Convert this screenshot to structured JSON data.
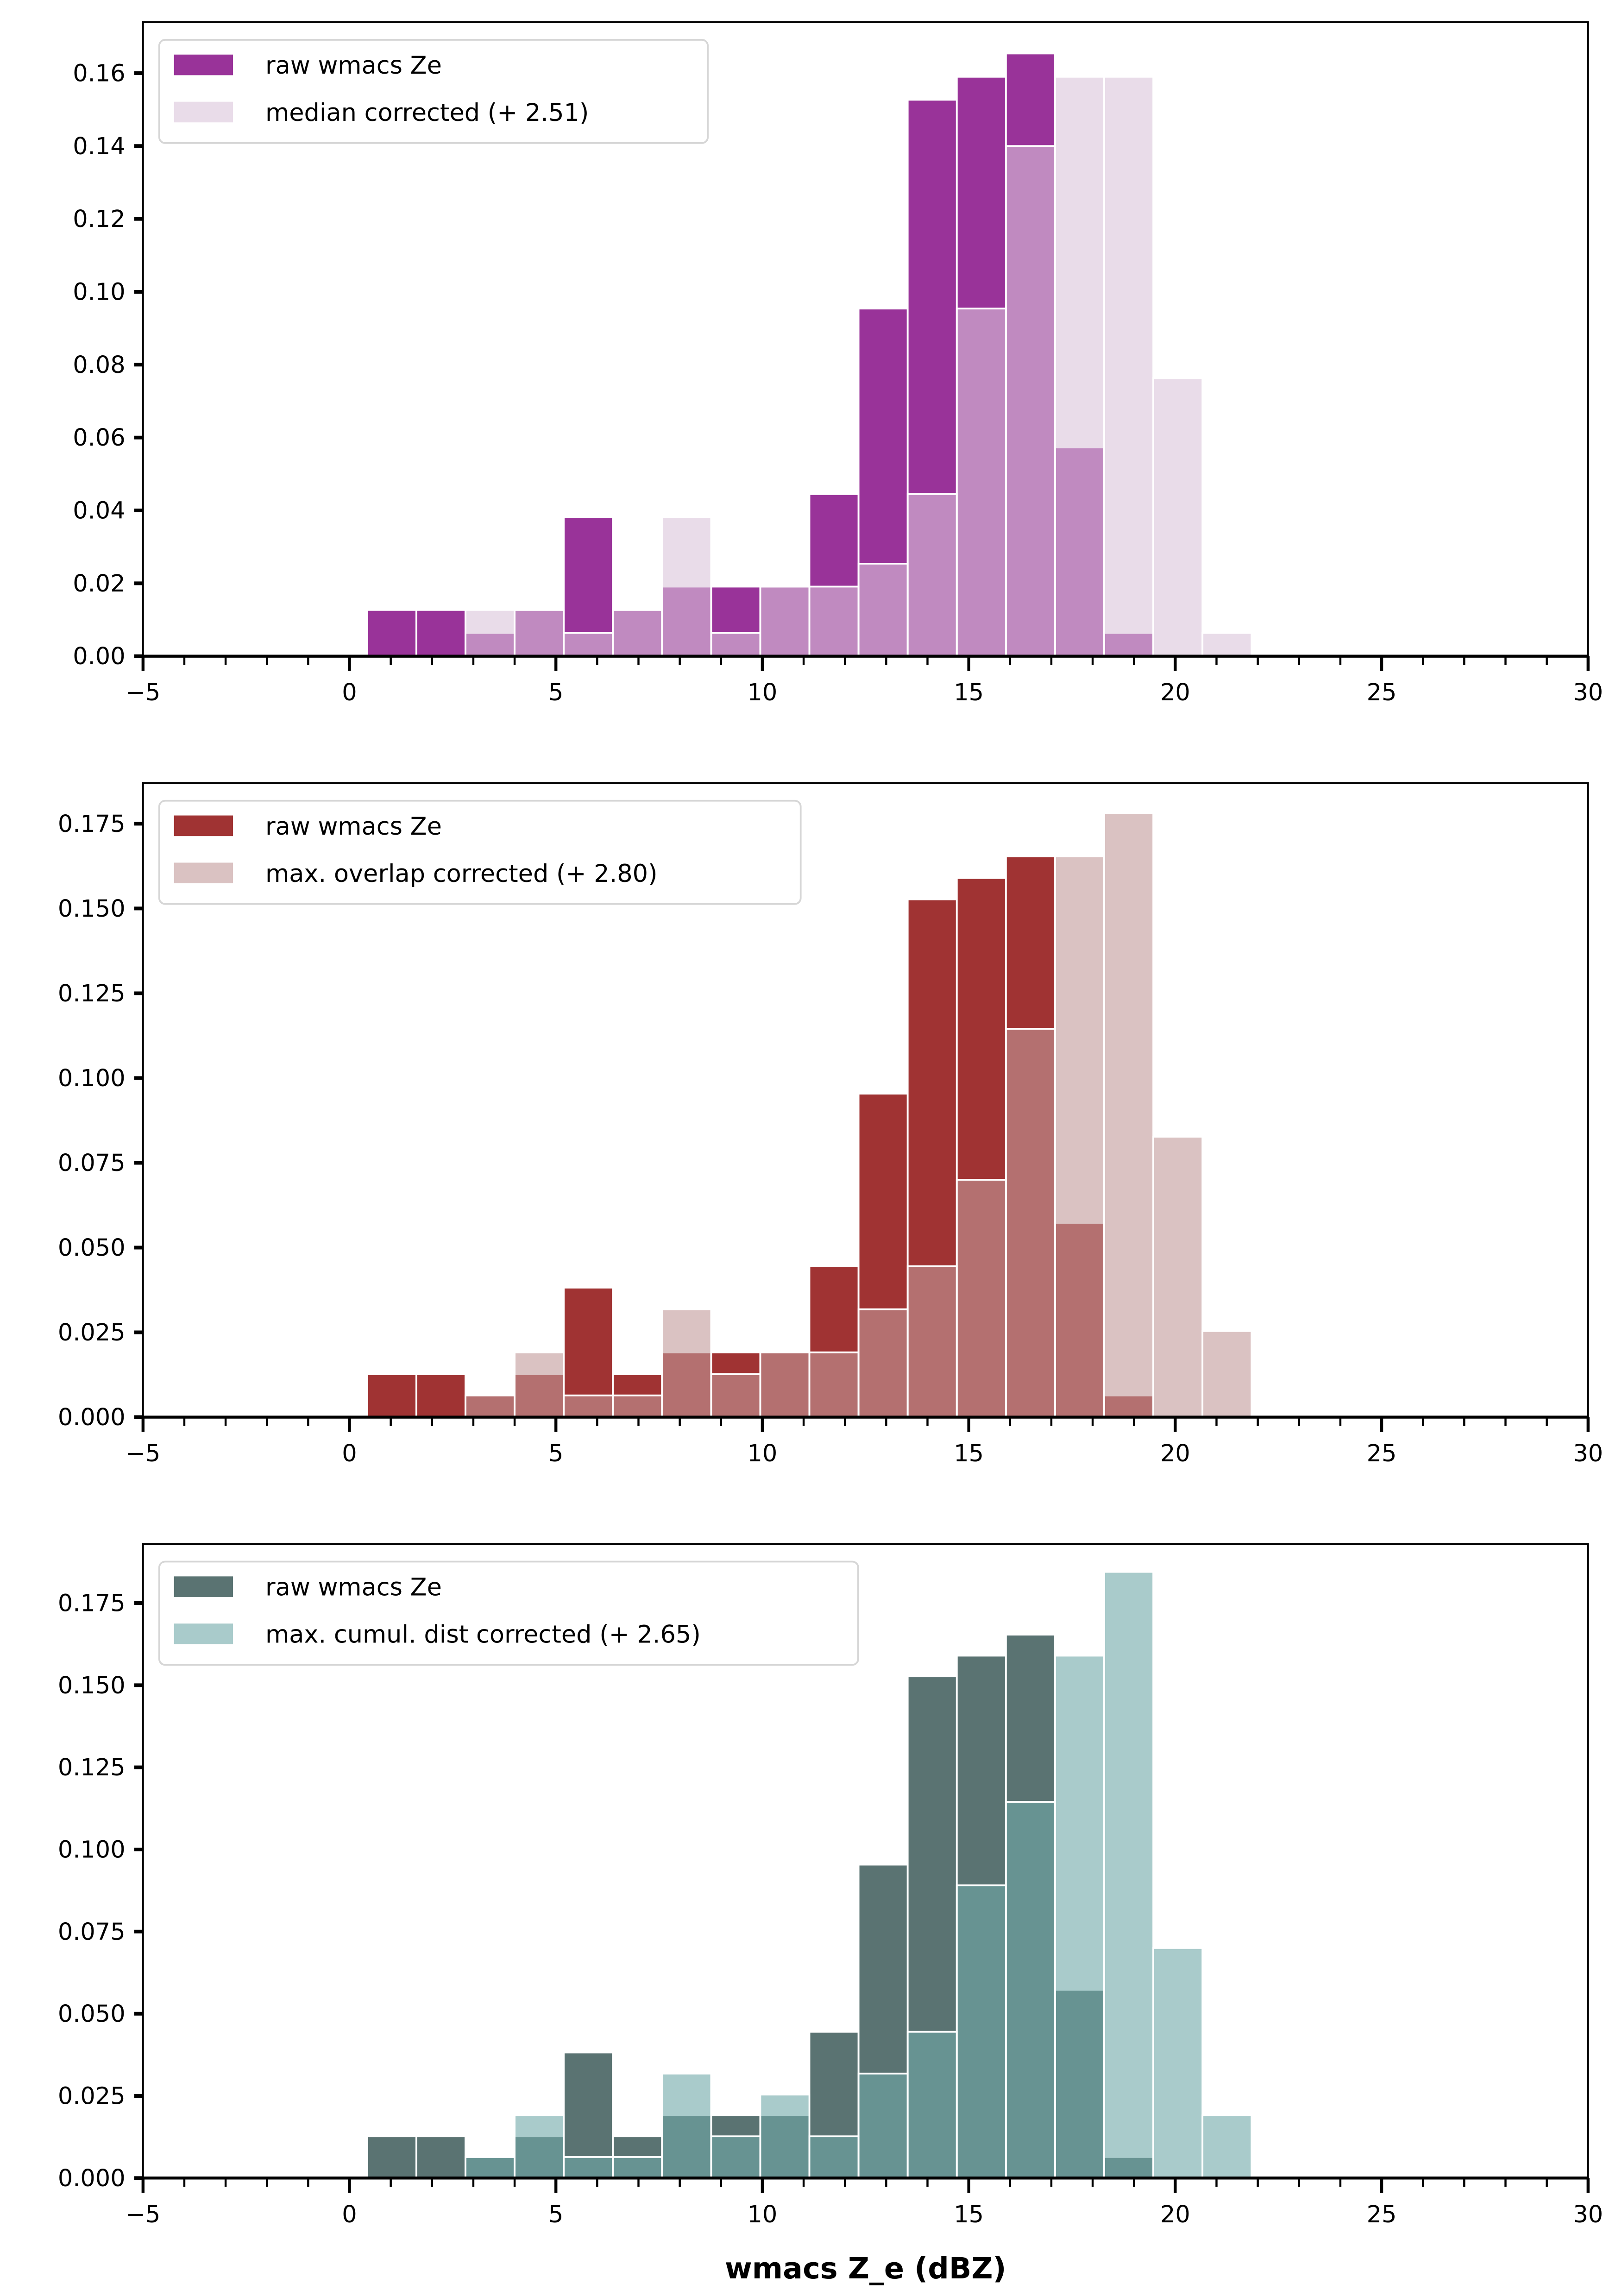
{
  "chart_data": [
    {
      "type": "bar",
      "subtype": "overlaid-histogram",
      "title": "",
      "xlabel": "",
      "ylabel": "",
      "xlim": [
        -5,
        30
      ],
      "ylim": [
        0,
        0.174
      ],
      "xticks": [
        -5,
        0,
        5,
        10,
        15,
        20,
        25,
        30
      ],
      "xtick_labels": [
        "−5",
        "0",
        "5",
        "10",
        "15",
        "20",
        "25",
        "30"
      ],
      "yticks": [
        0.0,
        0.02,
        0.04,
        0.06,
        0.08,
        0.1,
        0.12,
        0.14,
        0.16
      ],
      "ytick_labels": [
        "0.00",
        "0.02",
        "0.04",
        "0.06",
        "0.08",
        "0.10",
        "0.12",
        "0.14",
        "0.16"
      ],
      "legend_position": "top-left",
      "bin_edges": [
        0.43,
        1.62,
        2.81,
        4.0,
        5.19,
        6.38,
        7.57,
        8.76,
        9.95,
        11.14,
        12.33,
        13.52,
        14.71,
        15.9,
        17.09,
        18.28,
        19.47,
        20.66,
        21.85
      ],
      "series": [
        {
          "name": "raw wmacs Ze",
          "color": "#993399",
          "alpha": 1.0,
          "values": [
            0.0127,
            0.0127,
            0.0064,
            0.0127,
            0.0382,
            0.0127,
            0.0191,
            0.0191,
            0.0191,
            0.0445,
            0.0954,
            0.1527,
            0.159,
            0.1654,
            0.0573,
            0.0064,
            0,
            0
          ]
        },
        {
          "name": "median corrected (+ 2.51)",
          "color": "#dac4da",
          "overlap_color": "#d2aed0",
          "alpha": 0.6,
          "values": [
            0,
            0,
            0.0127,
            0.0127,
            0.0064,
            0.0127,
            0.0382,
            0.0064,
            0.0191,
            0.0191,
            0.0254,
            0.0445,
            0.0954,
            0.14,
            0.159,
            0.159,
            0.0763,
            0.0064
          ]
        }
      ]
    },
    {
      "type": "bar",
      "subtype": "overlaid-histogram",
      "title": "",
      "xlabel": "",
      "ylabel": "",
      "xlim": [
        -5,
        30
      ],
      "ylim": [
        0,
        0.187
      ],
      "xticks": [
        -5,
        0,
        5,
        10,
        15,
        20,
        25,
        30
      ],
      "xtick_labels": [
        "−5",
        "0",
        "5",
        "10",
        "15",
        "20",
        "25",
        "30"
      ],
      "yticks": [
        0.0,
        0.025,
        0.05,
        0.075,
        0.1,
        0.125,
        0.15,
        0.175
      ],
      "ytick_labels": [
        "0.000",
        "0.025",
        "0.050",
        "0.075",
        "0.100",
        "0.125",
        "0.150",
        "0.175"
      ],
      "legend_position": "top-left",
      "bin_edges": [
        0.43,
        1.62,
        2.81,
        4.0,
        5.19,
        6.38,
        7.57,
        8.76,
        9.95,
        11.14,
        12.33,
        13.52,
        14.71,
        15.9,
        17.09,
        18.28,
        19.47,
        20.66,
        21.85
      ],
      "series": [
        {
          "name": "raw wmacs Ze",
          "color": "#a03333",
          "alpha": 1.0,
          "values": [
            0.0127,
            0.0127,
            0.0064,
            0.0127,
            0.0382,
            0.0127,
            0.0191,
            0.0191,
            0.0191,
            0.0445,
            0.0954,
            0.1527,
            0.159,
            0.1654,
            0.0573,
            0.0064,
            0,
            0
          ]
        },
        {
          "name": "max. overlap corrected (+ 2.80)",
          "color": "#c29a9a",
          "overlap_color": "#b88686",
          "alpha": 0.6,
          "values": [
            0,
            0,
            0.0064,
            0.0191,
            0.0064,
            0.0064,
            0.0318,
            0.0127,
            0.0191,
            0.0191,
            0.0318,
            0.0445,
            0.07,
            0.1145,
            0.1654,
            0.1781,
            0.0827,
            0.0254
          ]
        }
      ]
    },
    {
      "type": "bar",
      "subtype": "overlaid-histogram",
      "title": "",
      "xlabel": "wmacs Z_e (dBZ)",
      "ylabel": "",
      "xlim": [
        -5,
        30
      ],
      "ylim": [
        0,
        0.193
      ],
      "xticks": [
        -5,
        0,
        5,
        10,
        15,
        20,
        25,
        30
      ],
      "xtick_labels": [
        "−5",
        "0",
        "5",
        "10",
        "15",
        "20",
        "25",
        "30"
      ],
      "yticks": [
        0.0,
        0.025,
        0.05,
        0.075,
        0.1,
        0.125,
        0.15,
        0.175
      ],
      "ytick_labels": [
        "0.000",
        "0.025",
        "0.050",
        "0.075",
        "0.100",
        "0.125",
        "0.150",
        "0.175"
      ],
      "legend_position": "top-left",
      "bin_edges": [
        0.43,
        1.62,
        2.81,
        4.0,
        5.19,
        6.38,
        7.57,
        8.76,
        9.95,
        11.14,
        12.33,
        13.52,
        14.71,
        15.9,
        17.09,
        18.28,
        19.47,
        20.66,
        21.85
      ],
      "series": [
        {
          "name": "raw wmacs Ze",
          "color": "#5a7372",
          "alpha": 1.0,
          "values": [
            0.0127,
            0.0127,
            0.0064,
            0.0127,
            0.0382,
            0.0127,
            0.0191,
            0.0191,
            0.0191,
            0.0445,
            0.0954,
            0.1527,
            0.159,
            0.1654,
            0.0573,
            0.0064,
            0,
            0
          ]
        },
        {
          "name": "max. cumul. dist corrected (+ 2.65)",
          "color": "#70a8a8",
          "overlap_color": "#5e9999",
          "alpha": 0.6,
          "values": [
            0,
            0,
            0.0064,
            0.0191,
            0.0064,
            0.0064,
            0.0318,
            0.0127,
            0.0254,
            0.0127,
            0.0318,
            0.0445,
            0.0891,
            0.1145,
            0.159,
            0.1845,
            0.07,
            0.0191
          ]
        }
      ]
    }
  ]
}
